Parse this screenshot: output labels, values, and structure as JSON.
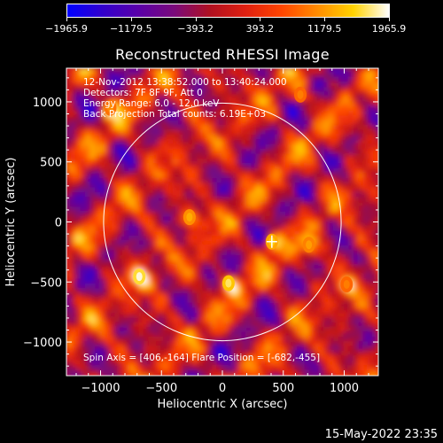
{
  "colorbar": {
    "min": -1965.9,
    "max": 1965.9,
    "tick_labels": [
      "-1965.9",
      "-1179.5",
      "-393.2",
      "393.2",
      "1179.5",
      "1965.9"
    ],
    "colormap": [
      "#0000ff",
      "#3300cc",
      "#5a00a8",
      "#7a0a7a",
      "#b01020",
      "#e02010",
      "#ff4500",
      "#ff8c00",
      "#ffd200",
      "#ffffff"
    ]
  },
  "chart_data": {
    "type": "heatmap",
    "title": "Reconstructed RHESSI Image",
    "xlabel": "Heliocentric X (arcsec)",
    "ylabel": "Heliocentric Y (arcsec)",
    "xlim": [
      -1280,
      1280
    ],
    "ylim": [
      -1280,
      1280
    ],
    "x_ticks": [
      -1000,
      -500,
      0,
      500,
      1000
    ],
    "x_tick_labels": [
      "−1000",
      "−500",
      "0",
      "500",
      "1000"
    ],
    "y_ticks": [
      -1000,
      -500,
      0,
      500,
      1000
    ],
    "y_tick_labels": [
      "−1000",
      "−500",
      "0",
      "500",
      "1000"
    ],
    "annotations": [
      "12-Nov-2012 13:38:52.000 to 13:40:24.000",
      "Detectors: 7F 8F 9F, Att 0",
      "Energy Range: 6.0 - 12.0 keV",
      "Back Projection    Total counts: 6.19E+03"
    ],
    "bottom_annotation": "Spin Axis = [406,-164]    Flare Position = [-682,-455]",
    "solar_disk": {
      "center": [
        0,
        0
      ],
      "radius": 975
    },
    "cross_marker": [
      406,
      -164
    ],
    "bright_sources": [
      {
        "x": -682,
        "y": -455,
        "intensity": 1900
      },
      {
        "x": 50,
        "y": -510,
        "intensity": 1700
      },
      {
        "x": 406,
        "y": -164,
        "intensity": 1500
      },
      {
        "x": -270,
        "y": 40,
        "intensity": 1300
      },
      {
        "x": 710,
        "y": -190,
        "intensity": 1200
      },
      {
        "x": -920,
        "y": 950,
        "intensity": 1100
      },
      {
        "x": 1020,
        "y": -520,
        "intensity": 1000
      },
      {
        "x": 640,
        "y": 1060,
        "intensity": 1000
      }
    ]
  },
  "footer": {
    "timestamp": "15-May-2022 23:35"
  }
}
